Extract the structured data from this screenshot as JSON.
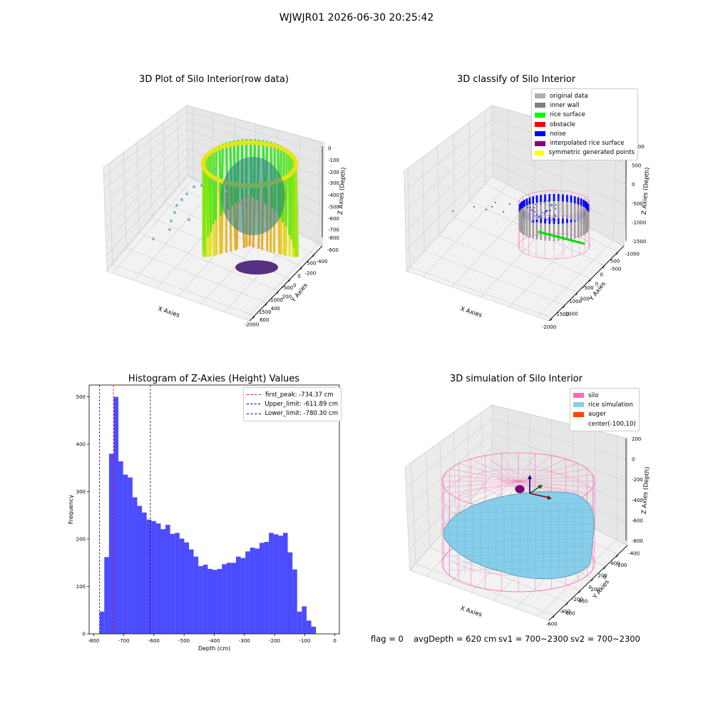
{
  "suptitle": "WJWJR01 2026-06-30 20:25:42",
  "panels": {
    "raw": {
      "title": "3D Plot of Silo Interior(row data)",
      "xlabel": "X Axies",
      "ylabel": "Y Axies",
      "zlabel": "Z Axies (Depth)",
      "xticks": [
        "-2000",
        "-1500",
        "-1000",
        "-500",
        "0",
        "500"
      ],
      "yticks": [
        "-600",
        "-400",
        "-200",
        "0",
        "200",
        "400",
        "600"
      ],
      "zticks": [
        "0",
        "-100",
        "-200",
        "-300",
        "-400",
        "-500",
        "-600",
        "-700",
        "-800"
      ]
    },
    "classify": {
      "title": "3D classify of Silo Interior",
      "xlabel": "X Axies",
      "ylabel": "Y Axies",
      "zlabel": "Z Axies (Depth)",
      "xticks": [
        "-2000",
        "-1500",
        "-1000",
        "-500",
        "0",
        "500"
      ],
      "yticks": [
        "-1000",
        "-500",
        "0",
        "500",
        "1000"
      ],
      "zticks": [
        "1000",
        "500",
        "0",
        "-500",
        "-1000",
        "-1500"
      ],
      "legend": [
        {
          "label": "original data",
          "color": "#b0b0b0"
        },
        {
          "label": "inner wall",
          "color": "#808080"
        },
        {
          "label": "rice surface",
          "color": "#00ff00"
        },
        {
          "label": "obstacle",
          "color": "#ff0000"
        },
        {
          "label": "noise",
          "color": "#0000ff"
        },
        {
          "label": "interpolated rice surface",
          "color": "#800080"
        },
        {
          "label": "symmetric generated points",
          "color": "#ffff00"
        }
      ]
    },
    "simulation": {
      "title": "3D simulation of Silo Interior",
      "xlabel": "X Axies",
      "ylabel": "Y Axies",
      "zlabel": "Z Axies (Depth)",
      "xticks": [
        "-600",
        "-400",
        "-200",
        "0",
        "200",
        "400"
      ],
      "yticks": [
        "-400",
        "-200",
        "0",
        "200",
        "400",
        "600"
      ],
      "zticks": [
        "200",
        "0",
        "-200",
        "-400",
        "-600",
        "-800"
      ],
      "legend": [
        {
          "label": "silo",
          "color": "#ff69b4"
        },
        {
          "label": "rice simulation",
          "color": "#87ceeb"
        },
        {
          "label": "auger",
          "color": "#ff4500"
        },
        {
          "label": "center(-100,10)",
          "color": ""
        }
      ]
    }
  },
  "chart_data": {
    "type": "bar",
    "title": "Histogram of Z-Axies (Height) Values",
    "xlabel": "Depth (cm)",
    "ylabel": "Frequency",
    "xlim": [
      -815,
      15
    ],
    "ylim": [
      0,
      525
    ],
    "xticks": [
      -800,
      -700,
      -600,
      -500,
      -400,
      -300,
      -200,
      -100,
      0
    ],
    "yticks": [
      0,
      100,
      200,
      300,
      400,
      500
    ],
    "bin_start": -780.3,
    "bin_width": 15.6,
    "counts": [
      47,
      162,
      380,
      500,
      364,
      336,
      330,
      288,
      270,
      256,
      241,
      238,
      233,
      221,
      230,
      211,
      213,
      201,
      193,
      178,
      163,
      143,
      146,
      137,
      135,
      137,
      147,
      150,
      150,
      163,
      160,
      174,
      182,
      180,
      192,
      194,
      213,
      210,
      207,
      213,
      172,
      136,
      47,
      58,
      28,
      15
    ],
    "color": "#0000ff",
    "lines": [
      {
        "label": "first_peak: -734.37 cm",
        "x": -734.37,
        "color": "#ff0000"
      },
      {
        "label": "Upper_limit: -611.89 cm",
        "x": -611.89,
        "color": "#00008b"
      },
      {
        "label": "Lower_limit: -780.30 cm",
        "x": -780.3,
        "color": "#0000cd"
      }
    ],
    "legend_position": "top-right"
  },
  "footer": {
    "flag": "flag = 0",
    "avg": "avgDepth = 620 cm",
    "sv1": "sv1 = 700~2300",
    "sv2": "sv2 = 700~2300"
  }
}
